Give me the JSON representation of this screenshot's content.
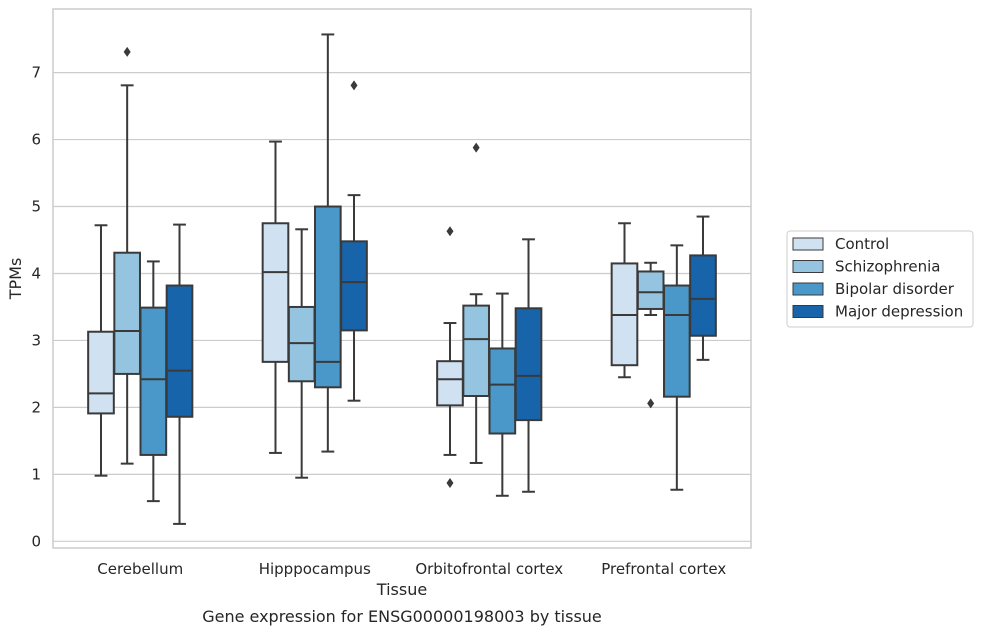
{
  "caption": "Gene expression for ENSG00000198003 by tissue",
  "chart_data": {
    "type": "box",
    "xlabel": "Tissue",
    "ylabel": "TPMs",
    "ylim": [
      -0.1,
      7.95
    ],
    "yticks": [
      0,
      1,
      2,
      3,
      4,
      5,
      6,
      7
    ],
    "grid": "horizontal",
    "legend_position": "right",
    "categories": [
      "Cerebellum",
      "Hipppocampus",
      "Orbitofrontal cortex",
      "Prefrontal cortex"
    ],
    "series": [
      {
        "name": "Control",
        "color": "#d0e1f2",
        "boxes": [
          {
            "whisker_low": 0.98,
            "q1": 1.91,
            "median": 2.21,
            "q3": 3.13,
            "whisker_high": 4.72,
            "outliers": []
          },
          {
            "whisker_low": 1.32,
            "q1": 2.68,
            "median": 4.02,
            "q3": 4.75,
            "whisker_high": 5.97,
            "outliers": []
          },
          {
            "whisker_low": 1.29,
            "q1": 2.03,
            "median": 2.42,
            "q3": 2.69,
            "whisker_high": 3.26,
            "outliers": [
              0.87,
              4.63
            ]
          },
          {
            "whisker_low": 2.45,
            "q1": 2.63,
            "median": 3.38,
            "q3": 4.15,
            "whisker_high": 4.75,
            "outliers": []
          }
        ]
      },
      {
        "name": "Schizophrenia",
        "color": "#94c4df",
        "boxes": [
          {
            "whisker_low": 1.16,
            "q1": 2.5,
            "median": 3.14,
            "q3": 4.31,
            "whisker_high": 6.81,
            "outliers": [
              7.31
            ]
          },
          {
            "whisker_low": 0.95,
            "q1": 2.39,
            "median": 2.96,
            "q3": 3.5,
            "whisker_high": 4.66,
            "outliers": []
          },
          {
            "whisker_low": 1.17,
            "q1": 2.17,
            "median": 3.02,
            "q3": 3.52,
            "whisker_high": 3.69,
            "outliers": [
              5.88
            ]
          },
          {
            "whisker_low": 3.38,
            "q1": 3.47,
            "median": 3.72,
            "q3": 4.03,
            "whisker_high": 4.16,
            "outliers": [
              2.06
            ]
          }
        ]
      },
      {
        "name": "Bipolar disorder",
        "color": "#4a98c9",
        "boxes": [
          {
            "whisker_low": 0.6,
            "q1": 1.29,
            "median": 2.42,
            "q3": 3.49,
            "whisker_high": 4.18,
            "outliers": []
          },
          {
            "whisker_low": 1.34,
            "q1": 2.3,
            "median": 2.68,
            "q3": 5.0,
            "whisker_high": 7.57,
            "outliers": []
          },
          {
            "whisker_low": 0.68,
            "q1": 1.61,
            "median": 2.34,
            "q3": 2.88,
            "whisker_high": 3.7,
            "outliers": []
          },
          {
            "whisker_low": 0.77,
            "q1": 2.16,
            "median": 3.38,
            "q3": 3.82,
            "whisker_high": 4.42,
            "outliers": []
          }
        ]
      },
      {
        "name": "Major depression",
        "color": "#1764ab",
        "boxes": [
          {
            "whisker_low": 0.26,
            "q1": 1.86,
            "median": 2.55,
            "q3": 3.82,
            "whisker_high": 4.73,
            "outliers": []
          },
          {
            "whisker_low": 2.1,
            "q1": 3.15,
            "median": 3.87,
            "q3": 4.48,
            "whisker_high": 5.17,
            "outliers": [
              6.81
            ]
          },
          {
            "whisker_low": 0.74,
            "q1": 1.81,
            "median": 2.47,
            "q3": 3.48,
            "whisker_high": 4.51,
            "outliers": []
          },
          {
            "whisker_low": 2.71,
            "q1": 3.07,
            "median": 3.62,
            "q3": 4.27,
            "whisker_high": 4.85,
            "outliers": []
          }
        ]
      }
    ]
  }
}
